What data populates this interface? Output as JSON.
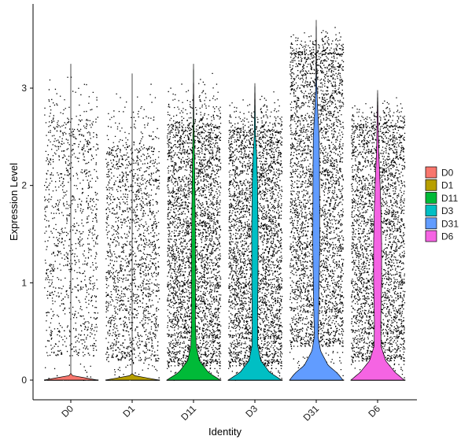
{
  "chart_data": {
    "type": "violin",
    "xlabel": "Identity",
    "ylabel": "Expression Level",
    "categories": [
      "D0",
      "D1",
      "D11",
      "D3",
      "D31",
      "D6"
    ],
    "yticks": [
      0,
      1,
      2,
      3
    ],
    "ylim": [
      -0.2,
      3.85
    ],
    "jitter_points": true,
    "grid": false,
    "legend_position": "right",
    "series": [
      {
        "name": "D0",
        "color": "#F8766D",
        "max": 3.25,
        "density": [
          [
            0,
            1
          ],
          [
            0.05,
            0.0
          ],
          [
            3.25,
            0.0
          ]
        ],
        "points": {
          "n": 1100,
          "band": [
            0.25,
            2.65
          ]
        }
      },
      {
        "name": "D1",
        "color": "#B79F00",
        "max": 3.15,
        "density": [
          [
            0,
            1
          ],
          [
            0.05,
            0.0
          ],
          [
            3.15,
            0.0
          ]
        ],
        "points": {
          "n": 1700,
          "band": [
            0.2,
            2.35
          ]
        }
      },
      {
        "name": "D11",
        "color": "#00BA38",
        "max": 3.25,
        "density": [
          [
            0,
            1
          ],
          [
            0.08,
            0.55
          ],
          [
            0.2,
            0.22
          ],
          [
            0.35,
            0.1
          ],
          [
            0.6,
            0.07
          ],
          [
            1.0,
            0.075
          ],
          [
            1.5,
            0.07
          ],
          [
            2.0,
            0.05
          ],
          [
            2.35,
            0.035
          ],
          [
            2.6,
            0.015
          ],
          [
            3.25,
            0.0
          ]
        ],
        "points": {
          "n": 6500,
          "band": [
            0.15,
            2.6
          ]
        }
      },
      {
        "name": "D3",
        "color": "#00BFC4",
        "max": 3.05,
        "density": [
          [
            0,
            1
          ],
          [
            0.08,
            0.55
          ],
          [
            0.2,
            0.22
          ],
          [
            0.35,
            0.11
          ],
          [
            0.6,
            0.1
          ],
          [
            1.0,
            0.115
          ],
          [
            1.5,
            0.12
          ],
          [
            2.0,
            0.1
          ],
          [
            2.3,
            0.07
          ],
          [
            2.5,
            0.025
          ],
          [
            3.05,
            0.0
          ]
        ],
        "points": {
          "n": 4000,
          "band": [
            0.15,
            2.55
          ]
        }
      },
      {
        "name": "D31",
        "color": "#619CFF",
        "max": 3.7,
        "density": [
          [
            0,
            1
          ],
          [
            0.07,
            0.8
          ],
          [
            0.15,
            0.45
          ],
          [
            0.3,
            0.16
          ],
          [
            0.45,
            0.07
          ],
          [
            0.7,
            0.09
          ],
          [
            1.0,
            0.11
          ],
          [
            1.4,
            0.13
          ],
          [
            1.8,
            0.125
          ],
          [
            2.2,
            0.12
          ],
          [
            2.5,
            0.11
          ],
          [
            2.8,
            0.05
          ],
          [
            3.05,
            0.015
          ],
          [
            3.7,
            0.0
          ]
        ],
        "points": {
          "n": 11000,
          "band": [
            0.35,
            3.35
          ]
        }
      },
      {
        "name": "D6",
        "color": "#F564E3",
        "max": 2.98,
        "density": [
          [
            0,
            1
          ],
          [
            0.08,
            0.65
          ],
          [
            0.2,
            0.3
          ],
          [
            0.35,
            0.13
          ],
          [
            0.6,
            0.12
          ],
          [
            1.0,
            0.15
          ],
          [
            1.4,
            0.15
          ],
          [
            1.8,
            0.12
          ],
          [
            2.1,
            0.08
          ],
          [
            2.35,
            0.04
          ],
          [
            2.98,
            0.0
          ]
        ],
        "points": {
          "n": 3000,
          "band": [
            0.2,
            2.6
          ]
        }
      }
    ]
  }
}
